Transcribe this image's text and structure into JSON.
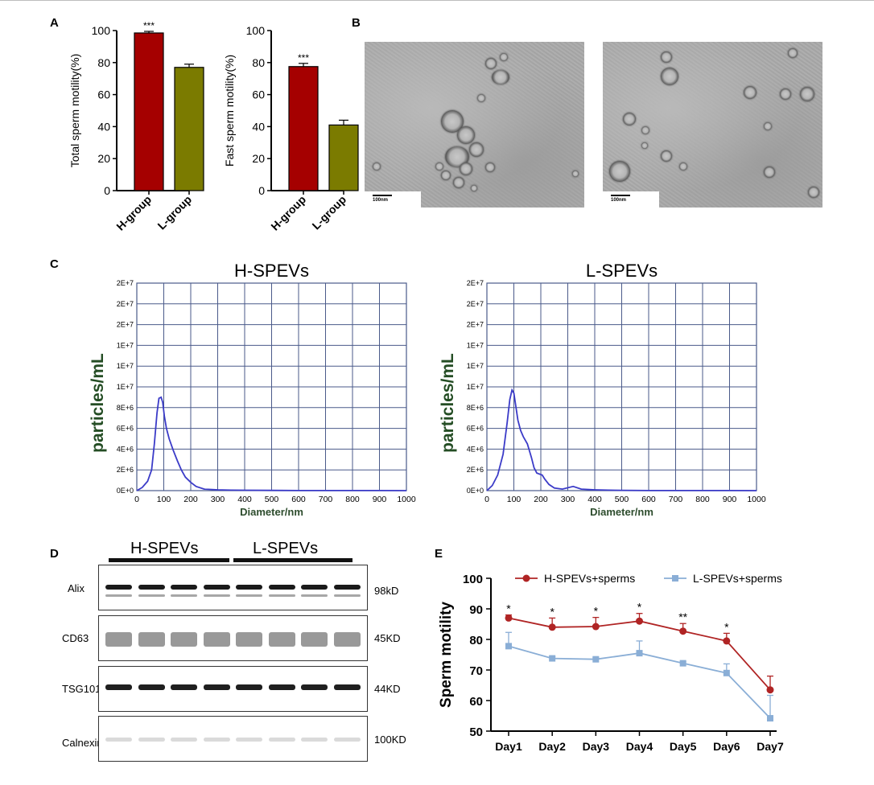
{
  "panels": {
    "A": "A",
    "B": "B",
    "C": "C",
    "D": "D",
    "E": "E"
  },
  "chart_data": [
    {
      "id": "A1",
      "type": "bar",
      "categories": [
        "H-group",
        "L-group"
      ],
      "values": [
        98.5,
        77
      ],
      "errors": [
        1,
        2
      ],
      "colors": [
        "#a50000",
        "#7b7b00"
      ],
      "ylabel": "Total sperm motility(%)",
      "ylim": [
        0,
        100
      ],
      "yticks": [
        0,
        20,
        40,
        60,
        80,
        100
      ],
      "annotations": [
        "***",
        ""
      ]
    },
    {
      "id": "A2",
      "type": "bar",
      "categories": [
        "H-group",
        "L-group"
      ],
      "values": [
        77.5,
        41
      ],
      "errors": [
        2,
        3
      ],
      "colors": [
        "#a50000",
        "#7b7b00"
      ],
      "ylabel": "Fast sperm motility(%)",
      "ylim": [
        0,
        100
      ],
      "yticks": [
        0,
        20,
        40,
        60,
        80,
        100
      ],
      "annotations": [
        "***",
        ""
      ]
    },
    {
      "id": "C1",
      "type": "line",
      "title": "H-SPEVs",
      "xlabel": "Diameter/nm",
      "ylabel": "particles/mL",
      "xlim": [
        0,
        1000
      ],
      "ylim": [
        0,
        20000000
      ],
      "xticks": [
        "0",
        "100",
        "200",
        "300",
        "400",
        "500",
        "600",
        "700",
        "800",
        "900",
        "1000"
      ],
      "yticks": [
        "0E+0",
        "2E+6",
        "4E+6",
        "6E+6",
        "8E+6",
        "1E+7",
        "1E+7",
        "1E+7",
        "2E+7",
        "2E+7",
        "2E+7"
      ],
      "color": "#3b3bc8",
      "x": [
        0,
        20,
        40,
        55,
        65,
        75,
        82,
        90,
        96,
        102,
        110,
        120,
        135,
        150,
        165,
        180,
        200,
        220,
        250,
        300,
        350,
        400,
        500,
        600,
        700,
        800,
        900,
        1000
      ],
      "y": [
        0,
        300000,
        900000,
        2000000,
        4500000,
        7500000,
        8900000,
        9000000,
        8500000,
        7200000,
        6000000,
        5000000,
        3900000,
        2900000,
        2000000,
        1300000,
        800000,
        400000,
        150000,
        80000,
        50000,
        40000,
        20000,
        10000,
        10000,
        5000,
        5000,
        0
      ]
    },
    {
      "id": "C2",
      "type": "line",
      "title": "L-SPEVs",
      "xlabel": "Diameter/nm",
      "ylabel": "particles/mL",
      "xlim": [
        0,
        1000
      ],
      "ylim": [
        0,
        20000000
      ],
      "xticks": [
        "0",
        "100",
        "200",
        "300",
        "400",
        "500",
        "600",
        "700",
        "800",
        "900",
        "1000"
      ],
      "yticks": [
        "0E+0",
        "2E+6",
        "4E+6",
        "6E+6",
        "8E+6",
        "1E+7",
        "1E+7",
        "1E+7",
        "2E+7",
        "2E+7",
        "2E+7"
      ],
      "color": "#3b3bc8",
      "x": [
        0,
        20,
        40,
        60,
        75,
        85,
        93,
        100,
        108,
        115,
        125,
        135,
        150,
        165,
        175,
        185,
        195,
        205,
        215,
        230,
        250,
        280,
        320,
        350,
        380,
        400,
        450,
        500,
        600,
        700,
        800,
        900,
        1000
      ],
      "y": [
        0,
        500000,
        1500000,
        3500000,
        6500000,
        8800000,
        9700000,
        9400000,
        8000000,
        6800000,
        5800000,
        5200000,
        4500000,
        3200000,
        2200000,
        1700000,
        1600000,
        1500000,
        1100000,
        600000,
        250000,
        150000,
        400000,
        150000,
        100000,
        80000,
        50000,
        30000,
        10000,
        10000,
        5000,
        5000,
        0
      ]
    },
    {
      "id": "E",
      "type": "line",
      "categories": [
        "Day1",
        "Day2",
        "Day3",
        "Day4",
        "Day5",
        "Day6",
        "Day7"
      ],
      "ylabel": "Sperm motility",
      "ylim": [
        50,
        100
      ],
      "yticks": [
        50,
        60,
        70,
        80,
        90,
        100
      ],
      "legend": "top",
      "series": [
        {
          "name": "H-SPEVs+sperms",
          "color": "#b02424",
          "marker": "circle",
          "values": [
            87,
            84,
            84.2,
            86,
            82.7,
            79.5,
            63.5
          ],
          "errors": [
            1,
            3,
            3,
            2.5,
            2.5,
            2.5,
            4.5
          ]
        },
        {
          "name": "L-SPEVs+sperms",
          "color": "#8aaed6",
          "marker": "square",
          "values": [
            77.8,
            73.8,
            73.5,
            75.5,
            72.2,
            69,
            54.2
          ],
          "errors": [
            4.5,
            0.5,
            0.5,
            4,
            0.5,
            3,
            7.5
          ]
        }
      ],
      "annotations": [
        "*",
        "*",
        "*",
        "*",
        "**",
        "*",
        ""
      ]
    }
  ],
  "tem": {
    "scale_label": "100nm"
  },
  "western_blot": {
    "groups": [
      "H-SPEVs",
      "L-SPEVs"
    ],
    "rows": [
      {
        "protein": "Alix",
        "size": "98kD"
      },
      {
        "protein": "CD63",
        "size": "45KD"
      },
      {
        "protein": "TSG101",
        "size": "44KD"
      },
      {
        "protein": "Calnexin",
        "size": "100KD"
      }
    ]
  }
}
